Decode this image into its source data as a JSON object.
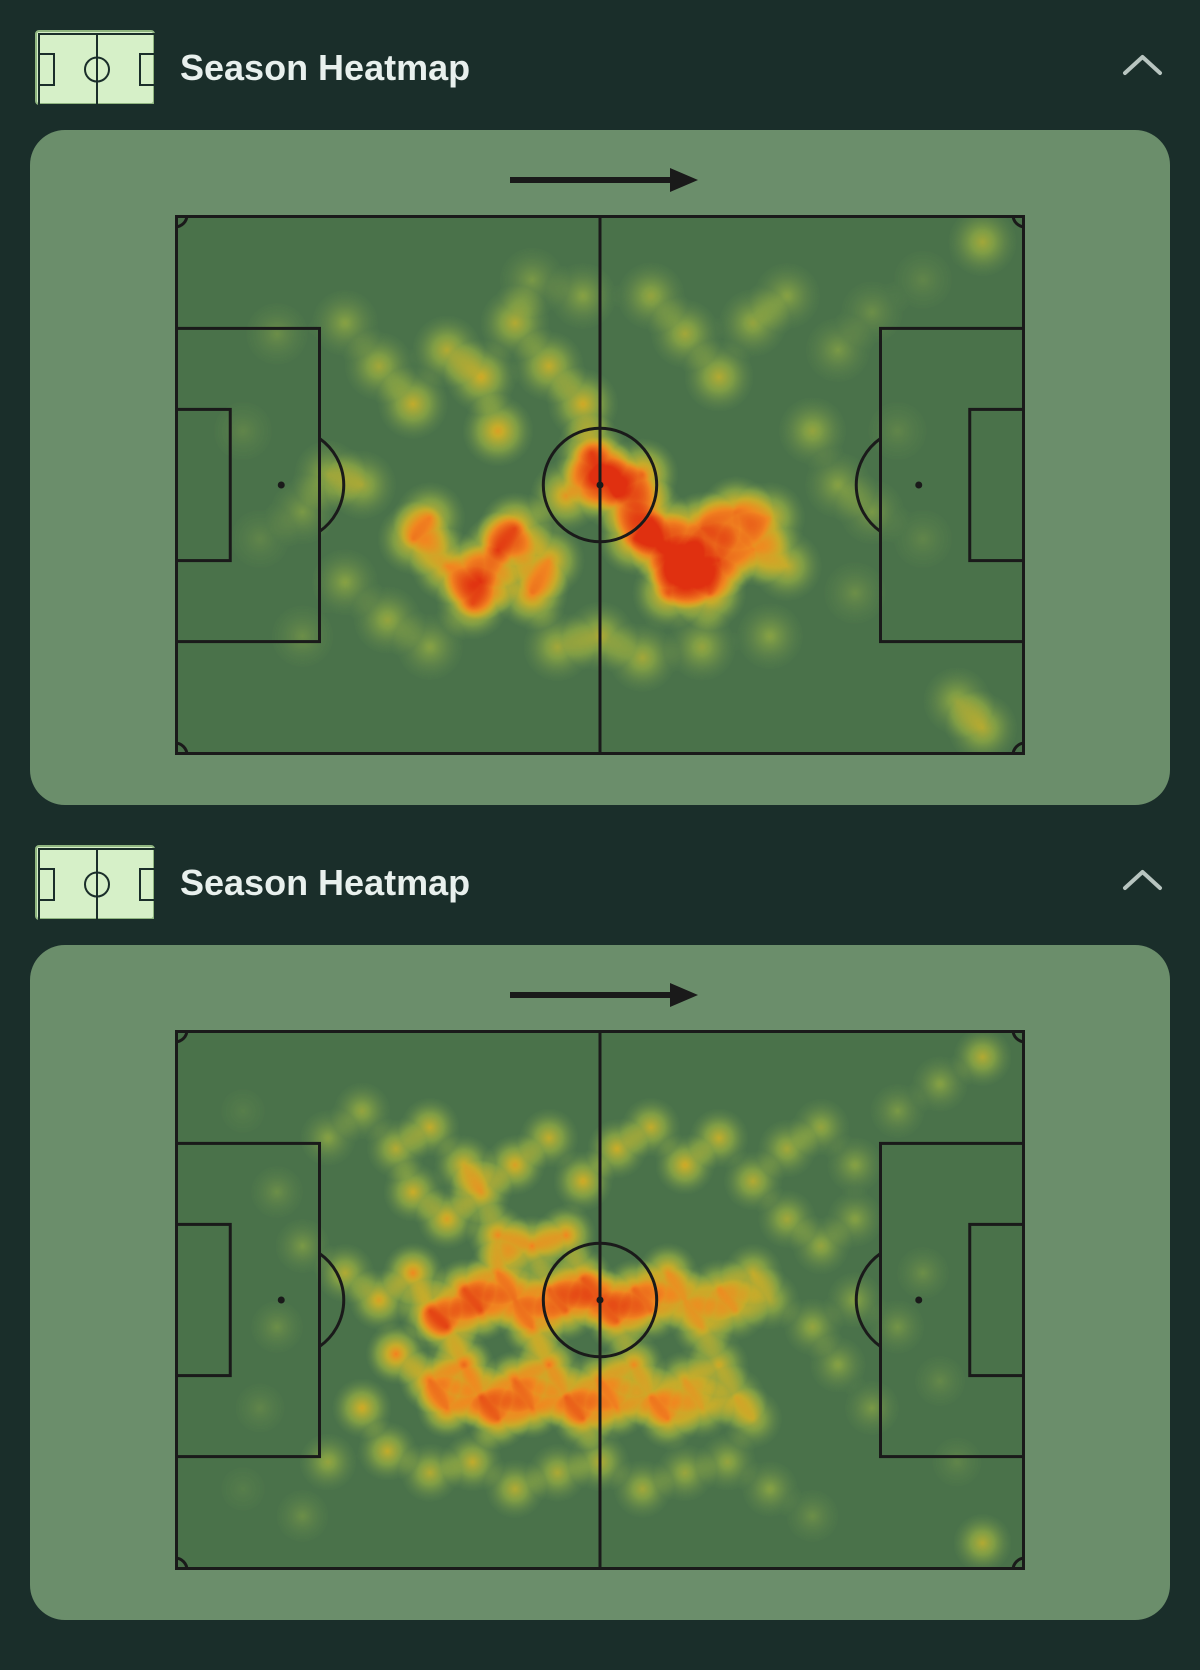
{
  "sections": [
    {
      "title": "Season Heatmap"
    },
    {
      "title": "Season Heatmap"
    }
  ],
  "colors": {
    "page_bg": "#1a2e2a",
    "card_bg": "#6b8e6b",
    "pitch_bg": "#4a724a",
    "pitch_line": "#1a1a1a",
    "icon_bg": "#d6f0c8",
    "icon_border": "#8fb580",
    "icon_line": "#1a2e2a",
    "title_text": "#e8f0ed",
    "chevron": "#b8c5c0",
    "arrow": "#1a1a1a",
    "heat_low": "#5d8a5d",
    "heat_mid_low": "#c8d840",
    "heat_mid": "#f0c020",
    "heat_mid_high": "#f08020",
    "heat_high": "#e03010"
  },
  "heatmaps": [
    {
      "type": "heatmap",
      "blur_radius": 38,
      "points": [
        {
          "x": 0.24,
          "y": 0.28,
          "i": 0.45
        },
        {
          "x": 0.2,
          "y": 0.2,
          "i": 0.35
        },
        {
          "x": 0.12,
          "y": 0.22,
          "i": 0.25
        },
        {
          "x": 0.28,
          "y": 0.35,
          "i": 0.55
        },
        {
          "x": 0.32,
          "y": 0.25,
          "i": 0.5
        },
        {
          "x": 0.36,
          "y": 0.3,
          "i": 0.6
        },
        {
          "x": 0.38,
          "y": 0.4,
          "i": 0.65
        },
        {
          "x": 0.4,
          "y": 0.2,
          "i": 0.5
        },
        {
          "x": 0.44,
          "y": 0.28,
          "i": 0.55
        },
        {
          "x": 0.48,
          "y": 0.35,
          "i": 0.6
        },
        {
          "x": 0.5,
          "y": 0.48,
          "i": 0.8
        },
        {
          "x": 0.52,
          "y": 0.52,
          "i": 0.85
        },
        {
          "x": 0.55,
          "y": 0.48,
          "i": 0.78
        },
        {
          "x": 0.49,
          "y": 0.44,
          "i": 0.75
        },
        {
          "x": 0.46,
          "y": 0.52,
          "i": 0.7
        },
        {
          "x": 0.56,
          "y": 0.15,
          "i": 0.4
        },
        {
          "x": 0.6,
          "y": 0.22,
          "i": 0.45
        },
        {
          "x": 0.64,
          "y": 0.3,
          "i": 0.5
        },
        {
          "x": 0.68,
          "y": 0.2,
          "i": 0.4
        },
        {
          "x": 0.72,
          "y": 0.15,
          "i": 0.35
        },
        {
          "x": 0.78,
          "y": 0.25,
          "i": 0.3
        },
        {
          "x": 0.82,
          "y": 0.18,
          "i": 0.25
        },
        {
          "x": 0.88,
          "y": 0.12,
          "i": 0.2
        },
        {
          "x": 0.95,
          "y": 0.05,
          "i": 0.45
        },
        {
          "x": 0.28,
          "y": 0.6,
          "i": 0.65
        },
        {
          "x": 0.32,
          "y": 0.65,
          "i": 0.75
        },
        {
          "x": 0.36,
          "y": 0.68,
          "i": 0.8
        },
        {
          "x": 0.38,
          "y": 0.62,
          "i": 0.85
        },
        {
          "x": 0.42,
          "y": 0.7,
          "i": 0.8
        },
        {
          "x": 0.4,
          "y": 0.58,
          "i": 0.78
        },
        {
          "x": 0.35,
          "y": 0.72,
          "i": 0.7
        },
        {
          "x": 0.3,
          "y": 0.56,
          "i": 0.6
        },
        {
          "x": 0.44,
          "y": 0.64,
          "i": 0.72
        },
        {
          "x": 0.54,
          "y": 0.6,
          "i": 0.8
        },
        {
          "x": 0.58,
          "y": 0.62,
          "i": 0.9
        },
        {
          "x": 0.62,
          "y": 0.58,
          "i": 0.92
        },
        {
          "x": 0.6,
          "y": 0.66,
          "i": 0.88
        },
        {
          "x": 0.64,
          "y": 0.64,
          "i": 0.85
        },
        {
          "x": 0.56,
          "y": 0.56,
          "i": 0.82
        },
        {
          "x": 0.66,
          "y": 0.55,
          "i": 0.78
        },
        {
          "x": 0.63,
          "y": 0.7,
          "i": 0.75
        },
        {
          "x": 0.58,
          "y": 0.7,
          "i": 0.72
        },
        {
          "x": 0.68,
          "y": 0.62,
          "i": 0.7
        },
        {
          "x": 0.7,
          "y": 0.56,
          "i": 0.6
        },
        {
          "x": 0.72,
          "y": 0.65,
          "i": 0.55
        },
        {
          "x": 0.18,
          "y": 0.48,
          "i": 0.4
        },
        {
          "x": 0.15,
          "y": 0.55,
          "i": 0.3
        },
        {
          "x": 0.22,
          "y": 0.5,
          "i": 0.45
        },
        {
          "x": 0.2,
          "y": 0.68,
          "i": 0.35
        },
        {
          "x": 0.25,
          "y": 0.75,
          "i": 0.4
        },
        {
          "x": 0.3,
          "y": 0.8,
          "i": 0.35
        },
        {
          "x": 0.15,
          "y": 0.78,
          "i": 0.25
        },
        {
          "x": 0.45,
          "y": 0.8,
          "i": 0.45
        },
        {
          "x": 0.5,
          "y": 0.78,
          "i": 0.5
        },
        {
          "x": 0.55,
          "y": 0.82,
          "i": 0.45
        },
        {
          "x": 0.62,
          "y": 0.8,
          "i": 0.4
        },
        {
          "x": 0.7,
          "y": 0.78,
          "i": 0.35
        },
        {
          "x": 0.78,
          "y": 0.5,
          "i": 0.35
        },
        {
          "x": 0.82,
          "y": 0.55,
          "i": 0.3
        },
        {
          "x": 0.8,
          "y": 0.7,
          "i": 0.25
        },
        {
          "x": 0.88,
          "y": 0.6,
          "i": 0.2
        },
        {
          "x": 0.92,
          "y": 0.9,
          "i": 0.4
        },
        {
          "x": 0.95,
          "y": 0.95,
          "i": 0.5
        },
        {
          "x": 0.08,
          "y": 0.4,
          "i": 0.2
        },
        {
          "x": 0.1,
          "y": 0.6,
          "i": 0.2
        },
        {
          "x": 0.75,
          "y": 0.4,
          "i": 0.4
        },
        {
          "x": 0.48,
          "y": 0.15,
          "i": 0.35
        },
        {
          "x": 0.42,
          "y": 0.12,
          "i": 0.3
        },
        {
          "x": 0.85,
          "y": 0.4,
          "i": 0.2
        }
      ]
    },
    {
      "type": "heatmap",
      "blur_radius": 32,
      "points": [
        {
          "x": 0.18,
          "y": 0.2,
          "i": 0.35
        },
        {
          "x": 0.22,
          "y": 0.15,
          "i": 0.4
        },
        {
          "x": 0.26,
          "y": 0.22,
          "i": 0.5
        },
        {
          "x": 0.3,
          "y": 0.18,
          "i": 0.55
        },
        {
          "x": 0.34,
          "y": 0.25,
          "i": 0.6
        },
        {
          "x": 0.28,
          "y": 0.3,
          "i": 0.58
        },
        {
          "x": 0.32,
          "y": 0.35,
          "i": 0.65
        },
        {
          "x": 0.36,
          "y": 0.3,
          "i": 0.7
        },
        {
          "x": 0.4,
          "y": 0.25,
          "i": 0.65
        },
        {
          "x": 0.44,
          "y": 0.2,
          "i": 0.55
        },
        {
          "x": 0.48,
          "y": 0.28,
          "i": 0.6
        },
        {
          "x": 0.52,
          "y": 0.22,
          "i": 0.58
        },
        {
          "x": 0.56,
          "y": 0.18,
          "i": 0.55
        },
        {
          "x": 0.6,
          "y": 0.25,
          "i": 0.6
        },
        {
          "x": 0.64,
          "y": 0.2,
          "i": 0.55
        },
        {
          "x": 0.68,
          "y": 0.28,
          "i": 0.5
        },
        {
          "x": 0.72,
          "y": 0.22,
          "i": 0.45
        },
        {
          "x": 0.76,
          "y": 0.18,
          "i": 0.4
        },
        {
          "x": 0.8,
          "y": 0.25,
          "i": 0.35
        },
        {
          "x": 0.85,
          "y": 0.15,
          "i": 0.3
        },
        {
          "x": 0.9,
          "y": 0.1,
          "i": 0.35
        },
        {
          "x": 0.95,
          "y": 0.05,
          "i": 0.5
        },
        {
          "x": 0.12,
          "y": 0.3,
          "i": 0.25
        },
        {
          "x": 0.15,
          "y": 0.4,
          "i": 0.3
        },
        {
          "x": 0.2,
          "y": 0.45,
          "i": 0.5
        },
        {
          "x": 0.24,
          "y": 0.5,
          "i": 0.65
        },
        {
          "x": 0.28,
          "y": 0.45,
          "i": 0.75
        },
        {
          "x": 0.3,
          "y": 0.52,
          "i": 0.8
        },
        {
          "x": 0.34,
          "y": 0.48,
          "i": 0.85
        },
        {
          "x": 0.32,
          "y": 0.55,
          "i": 0.82
        },
        {
          "x": 0.36,
          "y": 0.52,
          "i": 0.88
        },
        {
          "x": 0.38,
          "y": 0.45,
          "i": 0.8
        },
        {
          "x": 0.4,
          "y": 0.5,
          "i": 0.85
        },
        {
          "x": 0.42,
          "y": 0.55,
          "i": 0.82
        },
        {
          "x": 0.44,
          "y": 0.48,
          "i": 0.78
        },
        {
          "x": 0.46,
          "y": 0.52,
          "i": 0.8
        },
        {
          "x": 0.48,
          "y": 0.46,
          "i": 0.82
        },
        {
          "x": 0.5,
          "y": 0.5,
          "i": 0.85
        },
        {
          "x": 0.52,
          "y": 0.54,
          "i": 0.8
        },
        {
          "x": 0.54,
          "y": 0.48,
          "i": 0.78
        },
        {
          "x": 0.56,
          "y": 0.52,
          "i": 0.75
        },
        {
          "x": 0.58,
          "y": 0.45,
          "i": 0.72
        },
        {
          "x": 0.6,
          "y": 0.5,
          "i": 0.7
        },
        {
          "x": 0.62,
          "y": 0.55,
          "i": 0.68
        },
        {
          "x": 0.64,
          "y": 0.48,
          "i": 0.65
        },
        {
          "x": 0.66,
          "y": 0.52,
          "i": 0.6
        },
        {
          "x": 0.68,
          "y": 0.45,
          "i": 0.55
        },
        {
          "x": 0.7,
          "y": 0.5,
          "i": 0.5
        },
        {
          "x": 0.26,
          "y": 0.6,
          "i": 0.78
        },
        {
          "x": 0.3,
          "y": 0.65,
          "i": 0.85
        },
        {
          "x": 0.34,
          "y": 0.62,
          "i": 0.88
        },
        {
          "x": 0.32,
          "y": 0.7,
          "i": 0.82
        },
        {
          "x": 0.36,
          "y": 0.68,
          "i": 0.85
        },
        {
          "x": 0.38,
          "y": 0.72,
          "i": 0.8
        },
        {
          "x": 0.4,
          "y": 0.65,
          "i": 0.88
        },
        {
          "x": 0.42,
          "y": 0.7,
          "i": 0.85
        },
        {
          "x": 0.44,
          "y": 0.62,
          "i": 0.82
        },
        {
          "x": 0.46,
          "y": 0.68,
          "i": 0.8
        },
        {
          "x": 0.48,
          "y": 0.72,
          "i": 0.78
        },
        {
          "x": 0.5,
          "y": 0.65,
          "i": 0.8
        },
        {
          "x": 0.52,
          "y": 0.7,
          "i": 0.78
        },
        {
          "x": 0.54,
          "y": 0.62,
          "i": 0.75
        },
        {
          "x": 0.56,
          "y": 0.68,
          "i": 0.72
        },
        {
          "x": 0.58,
          "y": 0.72,
          "i": 0.7
        },
        {
          "x": 0.6,
          "y": 0.65,
          "i": 0.68
        },
        {
          "x": 0.62,
          "y": 0.7,
          "i": 0.65
        },
        {
          "x": 0.64,
          "y": 0.62,
          "i": 0.6
        },
        {
          "x": 0.66,
          "y": 0.68,
          "i": 0.55
        },
        {
          "x": 0.68,
          "y": 0.72,
          "i": 0.5
        },
        {
          "x": 0.22,
          "y": 0.7,
          "i": 0.6
        },
        {
          "x": 0.25,
          "y": 0.78,
          "i": 0.55
        },
        {
          "x": 0.3,
          "y": 0.82,
          "i": 0.5
        },
        {
          "x": 0.35,
          "y": 0.8,
          "i": 0.55
        },
        {
          "x": 0.4,
          "y": 0.85,
          "i": 0.5
        },
        {
          "x": 0.45,
          "y": 0.82,
          "i": 0.48
        },
        {
          "x": 0.5,
          "y": 0.8,
          "i": 0.5
        },
        {
          "x": 0.55,
          "y": 0.85,
          "i": 0.45
        },
        {
          "x": 0.6,
          "y": 0.82,
          "i": 0.42
        },
        {
          "x": 0.65,
          "y": 0.8,
          "i": 0.4
        },
        {
          "x": 0.7,
          "y": 0.85,
          "i": 0.35
        },
        {
          "x": 0.18,
          "y": 0.8,
          "i": 0.4
        },
        {
          "x": 0.12,
          "y": 0.55,
          "i": 0.25
        },
        {
          "x": 0.1,
          "y": 0.7,
          "i": 0.2
        },
        {
          "x": 0.75,
          "y": 0.55,
          "i": 0.4
        },
        {
          "x": 0.78,
          "y": 0.62,
          "i": 0.35
        },
        {
          "x": 0.8,
          "y": 0.5,
          "i": 0.35
        },
        {
          "x": 0.82,
          "y": 0.7,
          "i": 0.3
        },
        {
          "x": 0.85,
          "y": 0.55,
          "i": 0.28
        },
        {
          "x": 0.88,
          "y": 0.45,
          "i": 0.25
        },
        {
          "x": 0.9,
          "y": 0.65,
          "i": 0.22
        },
        {
          "x": 0.72,
          "y": 0.35,
          "i": 0.45
        },
        {
          "x": 0.76,
          "y": 0.4,
          "i": 0.4
        },
        {
          "x": 0.8,
          "y": 0.35,
          "i": 0.35
        },
        {
          "x": 0.38,
          "y": 0.38,
          "i": 0.75
        },
        {
          "x": 0.42,
          "y": 0.4,
          "i": 0.78
        },
        {
          "x": 0.46,
          "y": 0.38,
          "i": 0.76
        },
        {
          "x": 0.15,
          "y": 0.9,
          "i": 0.25
        },
        {
          "x": 0.75,
          "y": 0.9,
          "i": 0.25
        },
        {
          "x": 0.95,
          "y": 0.95,
          "i": 0.5
        },
        {
          "x": 0.08,
          "y": 0.15,
          "i": 0.15
        },
        {
          "x": 0.08,
          "y": 0.85,
          "i": 0.15
        },
        {
          "x": 0.92,
          "y": 0.8,
          "i": 0.2
        }
      ]
    }
  ]
}
